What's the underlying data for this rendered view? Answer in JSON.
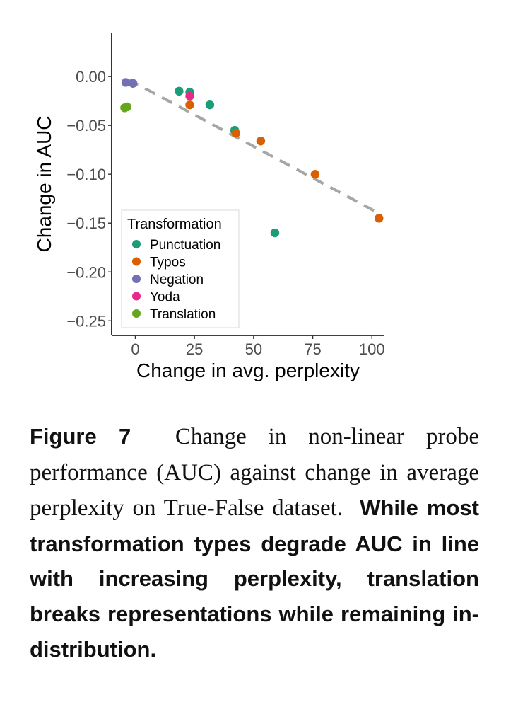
{
  "chart_data": {
    "type": "scatter",
    "xlabel": "Change in avg. perplexity",
    "ylabel": "Change in AUC",
    "xlim": [
      -10,
      105
    ],
    "ylim": [
      -0.265,
      0.045
    ],
    "x_ticks": [
      0,
      25,
      50,
      75,
      100
    ],
    "x_tick_labels": [
      "0",
      "25",
      "50",
      "75",
      "100"
    ],
    "y_ticks": [
      0.0,
      -0.05,
      -0.1,
      -0.15,
      -0.2,
      -0.25
    ],
    "y_tick_labels": [
      "0.00",
      "−0.05",
      "−0.10",
      "−0.15",
      "−0.20",
      "−0.25"
    ],
    "grid": false,
    "legend": {
      "title": "Transformation",
      "placement": "bottom-left"
    },
    "series": [
      {
        "name": "Punctuation",
        "color": "#1b9e77",
        "points": [
          [
            18.5,
            -0.015
          ],
          [
            23,
            -0.016
          ],
          [
            31.5,
            -0.029
          ],
          [
            42,
            -0.055
          ],
          [
            59,
            -0.16
          ]
        ]
      },
      {
        "name": "Typos",
        "color": "#d95f02",
        "points": [
          [
            23,
            -0.029
          ],
          [
            42.5,
            -0.058
          ],
          [
            53,
            -0.066
          ],
          [
            76,
            -0.1
          ],
          [
            103,
            -0.145
          ]
        ]
      },
      {
        "name": "Negation",
        "color": "#7570b3",
        "points": [
          [
            -4,
            -0.006
          ],
          [
            -1,
            -0.007
          ]
        ]
      },
      {
        "name": "Yoda",
        "color": "#e7298a",
        "points": [
          [
            23,
            -0.02
          ]
        ]
      },
      {
        "name": "Translation",
        "color": "#66a61e",
        "points": [
          [
            -4.5,
            -0.032
          ],
          [
            -3.5,
            -0.031
          ]
        ]
      }
    ],
    "trendline": {
      "style": "dashed",
      "color": "#a6a6a6",
      "x": [
        -3,
        103
      ],
      "y": [
        -0.003,
        -0.14
      ]
    }
  },
  "caption": {
    "figure_label": "Figure 7",
    "plain_text": "Change in non-linear probe performance (AUC) against change in average perplexity on True-False dataset.",
    "bold_text": "While most transformation types degrade AUC in line with in­creasing perplexity, translation breaks representations while remaining in­distribution."
  }
}
